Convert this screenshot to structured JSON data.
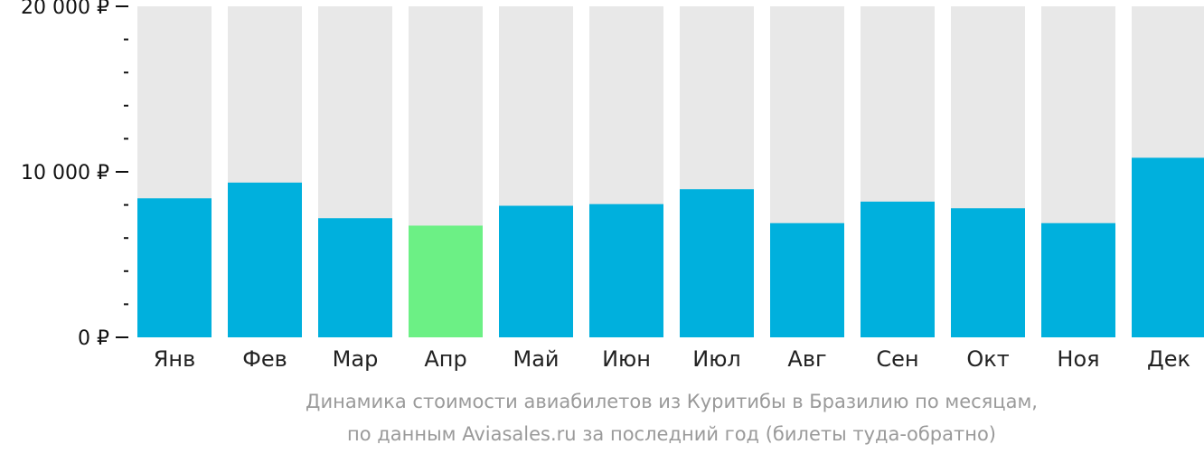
{
  "chart_data": {
    "type": "bar",
    "title": "",
    "xlabel": "",
    "ylabel": "",
    "categories": [
      "Янв",
      "Фев",
      "Мар",
      "Апр",
      "Май",
      "Июн",
      "Июл",
      "Авг",
      "Сен",
      "Окт",
      "Ноя",
      "Дек"
    ],
    "values": [
      8400,
      9350,
      7200,
      6750,
      7950,
      8050,
      8950,
      6900,
      8200,
      7800,
      6900,
      10850
    ],
    "ylim": [
      0,
      20000
    ],
    "y_ticks": [
      {
        "value": 0,
        "label": "0 ₽"
      },
      {
        "value": 10000,
        "label": "10 000 ₽"
      },
      {
        "value": 20000,
        "label": "20 000 ₽"
      }
    ],
    "minor_tick_step": 2000,
    "highlight_index": 3,
    "grid": false,
    "legend": "none",
    "colors": {
      "bar": "#00b0dd",
      "bar_highlight": "#6cf085",
      "bar_background": "#e8e8e8",
      "axis": "#111111"
    }
  },
  "caption": {
    "line1": "Динамика стоимости авиабилетов из Куритибы в Бразилию по месяцам,",
    "line2": "по данным Aviasales.ru за последний год (билеты туда-обратно)"
  }
}
